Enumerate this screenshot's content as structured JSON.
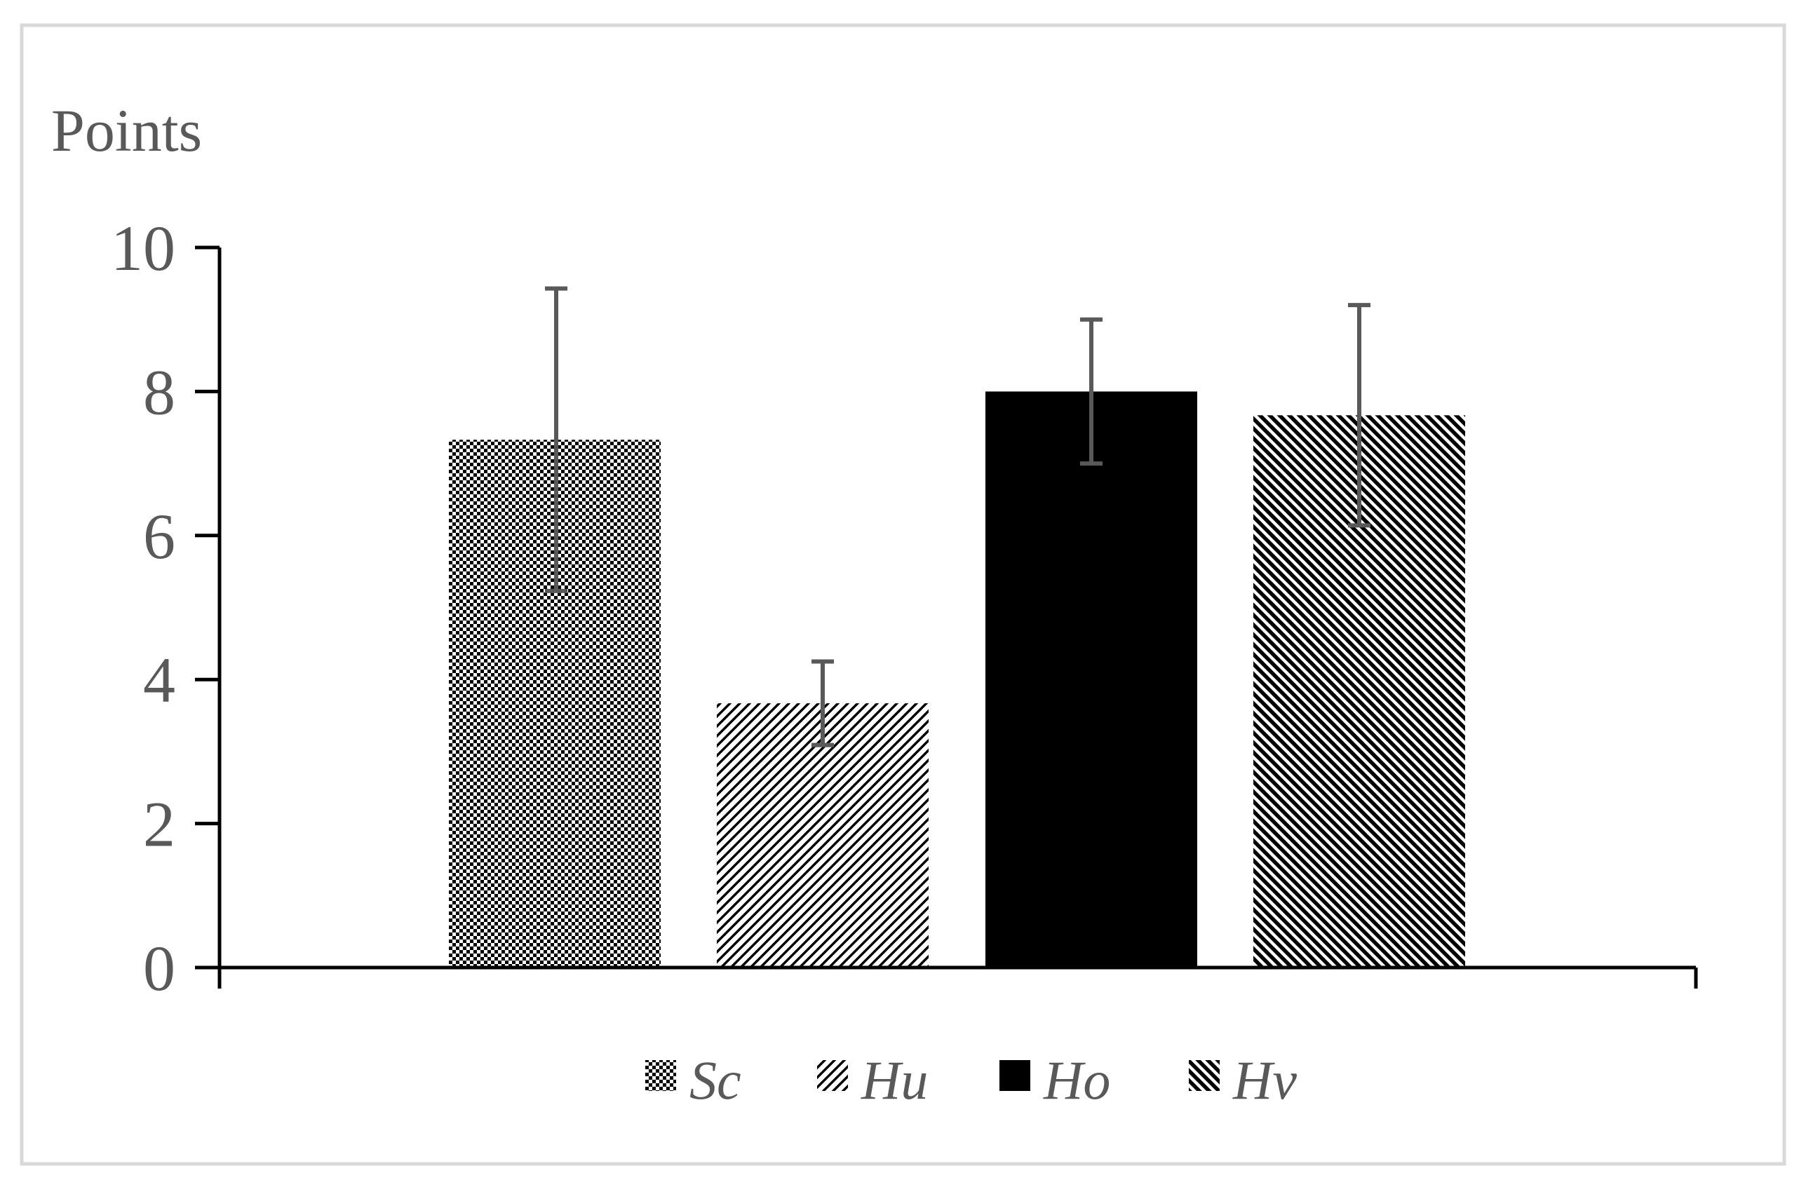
{
  "chart_data": {
    "type": "bar",
    "title": "",
    "xlabel": "",
    "ylabel": "Points",
    "ylim": [
      0,
      10
    ],
    "yticks": [
      0,
      2,
      4,
      6,
      8,
      10
    ],
    "grid": false,
    "legend_position": "bottom",
    "series": [
      {
        "name": "Sc",
        "value": 7.33,
        "error": 2.1,
        "pattern": "checker",
        "color": "#000000"
      },
      {
        "name": "Hu",
        "value": 3.67,
        "error": 0.58,
        "pattern": "light-diagonal",
        "color": "#000000"
      },
      {
        "name": "Ho",
        "value": 8.0,
        "error": 1.0,
        "pattern": "solid",
        "color": "#000000"
      },
      {
        "name": "Hv",
        "value": 7.67,
        "error": 1.53,
        "pattern": "dense-reverse-diagonal",
        "color": "#000000"
      }
    ],
    "errorbar_color": "#595959",
    "axis_color": "#000000",
    "text_color": "#595959",
    "frame_color": "#d9d9d9"
  }
}
